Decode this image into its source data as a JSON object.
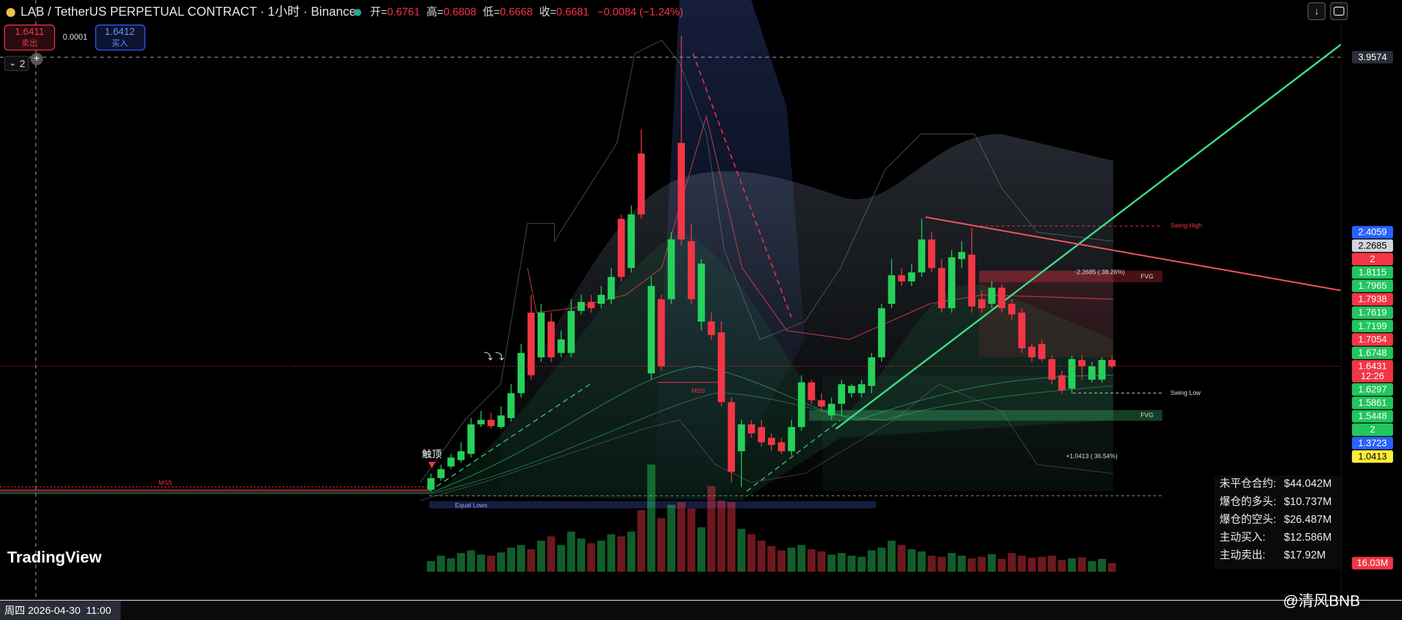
{
  "header": {
    "symbol": "LAB / TetherUS PERPETUAL CONTRACT · 1小时 · Binance",
    "open_label": "开=",
    "open": 0.6761,
    "high_label": "高=",
    "high": 0.6808,
    "low_label": "低=",
    "low": 0.6668,
    "close_label": "收=",
    "close": 0.6681,
    "change": "−0.0084 (−1.24%)"
  },
  "order": {
    "sell_price": 1.6411,
    "sell_label": "卖出",
    "spread": 0.0001,
    "buy_price": 1.6412,
    "buy_label": "买入",
    "layers": "2"
  },
  "chart_data": {
    "type": "candlestick",
    "ylim": [
      0.1044,
      4.386
    ],
    "up_color": "#26d15a",
    "down_color": "#f23645",
    "open": [
      0.719,
      0.806,
      0.893,
      0.94,
      0.987,
      1.208,
      1.242,
      1.188,
      1.255,
      1.442,
      2.045,
      1.71,
      1.978,
      1.743,
      1.743,
      2.058,
      2.125,
      2.111,
      2.145,
      2.747,
      2.379,
      3.236,
      1.59,
      2.145,
      2.145,
      3.316,
      2.58,
      1.978,
      1.978,
      1.897,
      1.375,
      1.007,
      1.208,
      1.188,
      1.108,
      1.074,
      1.007,
      1.188,
      1.523,
      1.389,
      1.275,
      1.362,
      1.442,
      1.442,
      1.496,
      1.71,
      2.111,
      2.325,
      2.279,
      2.346,
      2.593,
      2.379,
      2.078,
      2.446,
      2.479,
      2.145,
      2.111,
      2.232,
      2.111,
      2.045,
      1.79,
      1.81,
      1.697,
      1.576,
      1.476,
      1.69,
      1.543,
      1.543,
      1.69
    ],
    "high": [
      0.84,
      0.907,
      0.987,
      1.074,
      1.255,
      1.309,
      1.295,
      1.342,
      1.509,
      1.81,
      2.178,
      2.111,
      2.045,
      1.911,
      2.145,
      2.178,
      2.178,
      2.245,
      2.379,
      2.78,
      2.847,
      3.416,
      2.312,
      2.178,
      2.647,
      4.119,
      2.713,
      2.446,
      2.045,
      1.978,
      1.409,
      1.242,
      1.242,
      1.242,
      1.141,
      1.108,
      1.242,
      1.576,
      1.543,
      1.442,
      1.409,
      1.543,
      1.509,
      1.543,
      1.743,
      2.111,
      2.446,
      2.379,
      2.412,
      2.747,
      2.647,
      2.446,
      2.513,
      2.58,
      2.68,
      2.212,
      2.279,
      2.259,
      2.145,
      2.078,
      1.81,
      1.844,
      1.723,
      1.61,
      1.723,
      1.723,
      1.677,
      1.71,
      1.723
    ],
    "low": [
      0.706,
      0.786,
      0.873,
      0.92,
      0.96,
      1.188,
      1.175,
      1.175,
      1.228,
      1.409,
      1.543,
      1.677,
      1.677,
      1.71,
      1.71,
      2.031,
      2.045,
      2.078,
      2.111,
      2.279,
      2.346,
      2.747,
      1.543,
      1.61,
      2.111,
      2.546,
      2.111,
      1.911,
      1.844,
      1.342,
      0.773,
      0.739,
      1.108,
      1.041,
      1.007,
      0.987,
      0.974,
      1.161,
      1.362,
      1.309,
      1.242,
      1.275,
      1.409,
      1.409,
      1.442,
      1.677,
      2.078,
      2.245,
      2.245,
      2.312,
      2.346,
      2.045,
      2.045,
      2.379,
      2.045,
      2.045,
      2.078,
      2.045,
      1.991,
      1.743,
      1.677,
      1.677,
      1.509,
      1.442,
      1.442,
      1.543,
      1.523,
      1.523,
      1.63
    ],
    "close": [
      0.806,
      0.873,
      0.96,
      1.007,
      1.208,
      1.242,
      1.195,
      1.275,
      1.442,
      1.743,
      1.576,
      2.045,
      1.71,
      1.844,
      2.058,
      2.125,
      2.078,
      2.178,
      2.312,
      2.312,
      2.78,
      2.78,
      2.245,
      1.643,
      2.593,
      2.593,
      2.145,
      2.412,
      1.877,
      1.375,
      0.853,
      1.208,
      1.141,
      1.074,
      1.054,
      1.007,
      1.188,
      1.523,
      1.389,
      1.342,
      1.362,
      1.509,
      1.496,
      1.509,
      1.71,
      2.078,
      2.325,
      2.279,
      2.346,
      2.593,
      2.379,
      2.078,
      2.459,
      2.499,
      2.091,
      2.078,
      2.232,
      2.078,
      2.031,
      1.777,
      1.71,
      1.697,
      1.543,
      1.462,
      1.697,
      1.643,
      1.643,
      1.69,
      1.643
    ],
    "volume": [
      20,
      30,
      25,
      35,
      40,
      32,
      30,
      36,
      45,
      50,
      42,
      58,
      66,
      50,
      75,
      62,
      53,
      58,
      70,
      66,
      75,
      115,
      200,
      100,
      125,
      130,
      118,
      83,
      160,
      133,
      130,
      80,
      70,
      58,
      48,
      40,
      45,
      50,
      42,
      38,
      32,
      35,
      30,
      28,
      40,
      45,
      58,
      50,
      42,
      38,
      30,
      28,
      35,
      30,
      25,
      28,
      33,
      24,
      35,
      30,
      26,
      28,
      30,
      22,
      25,
      27,
      20,
      24,
      16.03
    ],
    "volume_ylim": [
      0,
      200
    ],
    "volume_tag": {
      "value": 16.03,
      "label": "16.03M"
    },
    "crosshair": 3.9574,
    "countdown": "12:26",
    "price_tags": [
      {
        "value": 2.4059,
        "color": "#2962ff"
      },
      {
        "value": 2.2685,
        "color": "#d1d4dc"
      },
      {
        "text": "2",
        "color": "#f23645"
      },
      {
        "value": 1.8115,
        "color": "#22c55e"
      },
      {
        "value": 1.7965,
        "color": "#22c55e"
      },
      {
        "value": 1.7938,
        "color": "#f23645"
      },
      {
        "value": 1.7619,
        "color": "#22c55e"
      },
      {
        "value": 1.7199,
        "color": "#22c55e"
      },
      {
        "value": 1.7054,
        "color": "#f23645"
      },
      {
        "value": 1.6748,
        "color": "#22c55e"
      },
      {
        "value": 1.6431,
        "color": "#f23645",
        "current": true
      },
      {
        "value": 1.6297,
        "color": "#22c55e"
      },
      {
        "value": 1.5861,
        "color": "#22c55e"
      },
      {
        "value": 1.5448,
        "color": "#22c55e"
      },
      {
        "text": "2",
        "color": "#22c55e"
      },
      {
        "value": 1.3723,
        "color": "#2962ff"
      },
      {
        "value": 1.0413,
        "color": "#ffeb3b"
      }
    ]
  },
  "annotations": {
    "touch_top": "触顶",
    "swing_high": "Swing High",
    "swing_low": "Swing Low",
    "fvg_upper": "FVG",
    "fvg_lower": "FVG",
    "mss_left": "MSS",
    "mss_mid": "MSS",
    "equal_lows": "Equal Lows",
    "target_upper": "-2.2685 ( 38.26%)",
    "target_lower": "+1.0413 ( 36.54%)"
  },
  "stats": [
    {
      "label": "未平仓合约:",
      "value": "$44.042M"
    },
    {
      "label": "爆仓的多头:",
      "value": "$10.737M"
    },
    {
      "label": "爆仓的空头:",
      "value": "$26.487M"
    },
    {
      "label": "主动买入:",
      "value": "$12.586M"
    },
    {
      "label": "主动卖出:",
      "value": "$17.92M"
    }
  ],
  "crosshair_time": "周四 2026-04-30  11:00",
  "branding": "TradingView",
  "watermark": "@清风BNB"
}
